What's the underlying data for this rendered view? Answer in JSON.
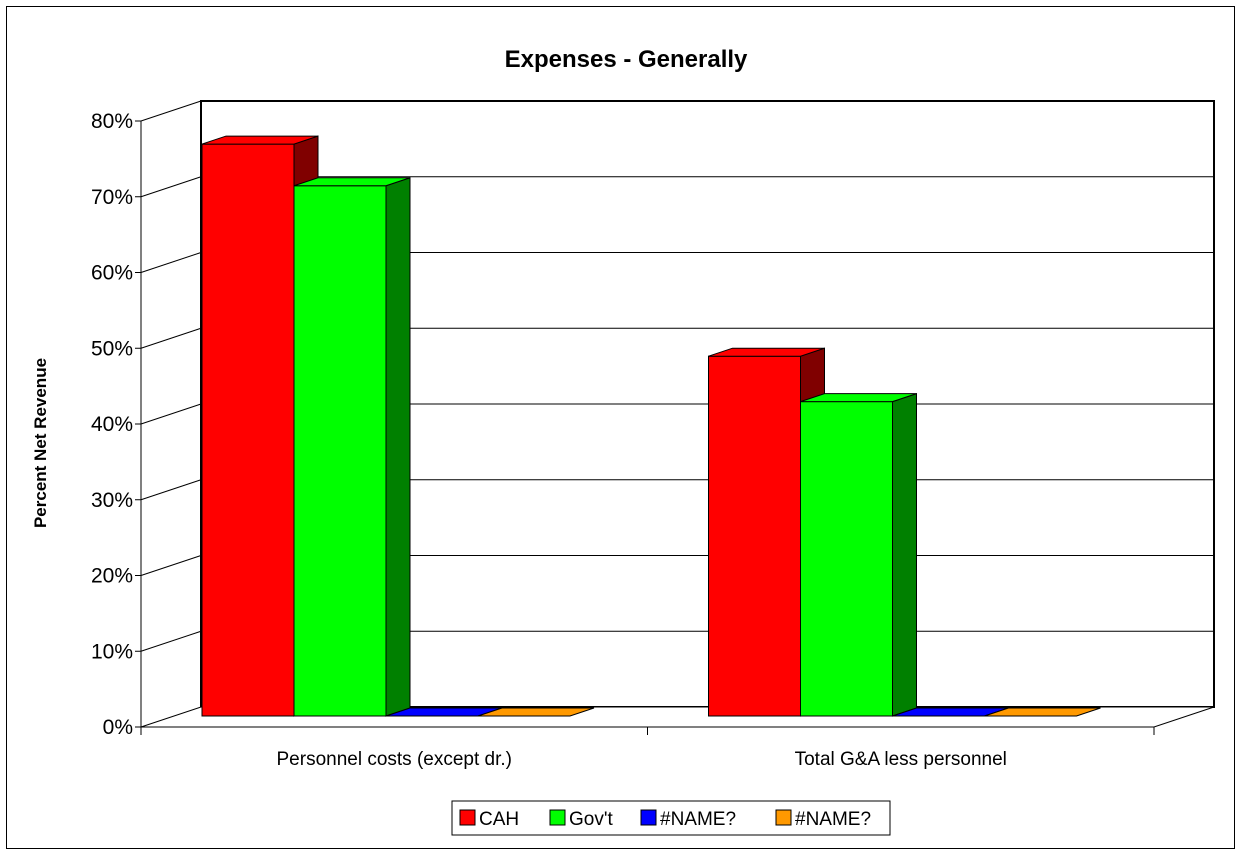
{
  "chart_data": {
    "type": "bar",
    "title": "Expenses - Generally",
    "xlabel": "",
    "ylabel": "Percent Net Revenue",
    "categories": [
      "Personnel costs (except dr.)",
      "Total G&A less personnel"
    ],
    "series": [
      {
        "name": "CAH",
        "values": [
          75.5,
          47.5
        ],
        "color": "#ff0000",
        "side_color": "#800000"
      },
      {
        "name": "Gov't",
        "values": [
          70,
          41.5
        ],
        "color": "#00ff00",
        "side_color": "#008000"
      },
      {
        "name": "#NAME?",
        "values": [
          0,
          0
        ],
        "color": "#0000ff",
        "side_color": "#000080"
      },
      {
        "name": "#NAME?",
        "values": [
          0,
          0
        ],
        "color": "#ff9900",
        "side_color": "#996600"
      }
    ],
    "ylim": [
      0,
      80
    ],
    "yticks": [
      "0%",
      "10%",
      "20%",
      "30%",
      "40%",
      "50%",
      "60%",
      "70%",
      "80%"
    ],
    "grid": true,
    "legend_position": "bottom"
  }
}
